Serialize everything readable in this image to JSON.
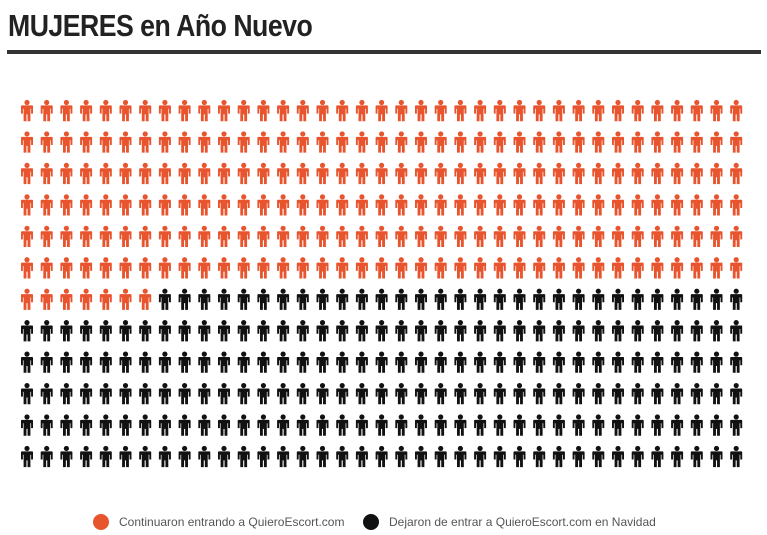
{
  "title": "MUJERES en Año Nuevo",
  "colors": {
    "accent": "#e8542d",
    "dark": "#111111",
    "rule": "#333333",
    "text": "#555555"
  },
  "chart_data": {
    "type": "pictogram",
    "icon": "person-icon",
    "grid": {
      "rows": 12,
      "columns": 37
    },
    "total": 444,
    "series": [
      {
        "name": "Continuaron entrando a QuieroEscort.com",
        "count": 229,
        "color": "#e8542d"
      },
      {
        "name": "Dejaron de entrar a QuieroEscort.com en Navidad",
        "count": 215,
        "color": "#111111"
      }
    ],
    "legend_position": "bottom"
  },
  "legend": [
    {
      "label": "Continuaron entrando a QuieroEscort.com",
      "color": "#e8542d"
    },
    {
      "label": "Dejaron de entrar a QuieroEscort.com en Navidad",
      "color": "#111111"
    }
  ]
}
